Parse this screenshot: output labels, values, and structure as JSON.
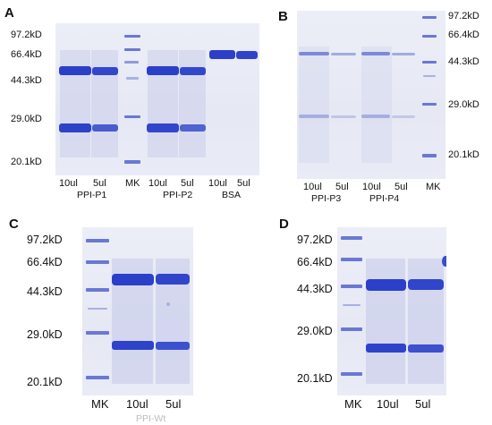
{
  "panels": {
    "a": {
      "letter": "A",
      "markers": [
        "97.2kD",
        "66.4kD",
        "44.3kD",
        "29.0kD",
        "20.1kD"
      ],
      "lanes": [
        "10ul",
        "5ul",
        "MK",
        "10ul",
        "5ul",
        "10ul",
        "5ul"
      ],
      "groups": [
        "PPI-P1",
        "PPI-P2",
        "BSA"
      ]
    },
    "b": {
      "letter": "B",
      "markers": [
        "97.2kD",
        "66.4kD",
        "44.3kD",
        "29.0kD",
        "20.1kD"
      ],
      "lanes": [
        "10ul",
        "5ul",
        "10ul",
        "5ul",
        "MK"
      ],
      "groups": [
        "PPI-P3",
        "PPI-P4"
      ]
    },
    "c": {
      "letter": "C",
      "markers": [
        "97.2kD",
        "66.4kD",
        "44.3kD",
        "29.0kD",
        "20.1kD"
      ],
      "lanes": [
        "MK",
        "10ul",
        "5ul"
      ],
      "groups": [
        "PPI-Wt"
      ]
    },
    "d": {
      "letter": "D",
      "markers": [
        "97.2kD",
        "66.4kD",
        "44.3kD",
        "29.0kD",
        "20.1kD"
      ],
      "lanes": [
        "MK",
        "10ul",
        "5ul"
      ]
    }
  },
  "colors": {
    "band": "#2b3fc9",
    "band_faint": "#8f9ad8",
    "gel_bg": "#e8eaf5"
  }
}
